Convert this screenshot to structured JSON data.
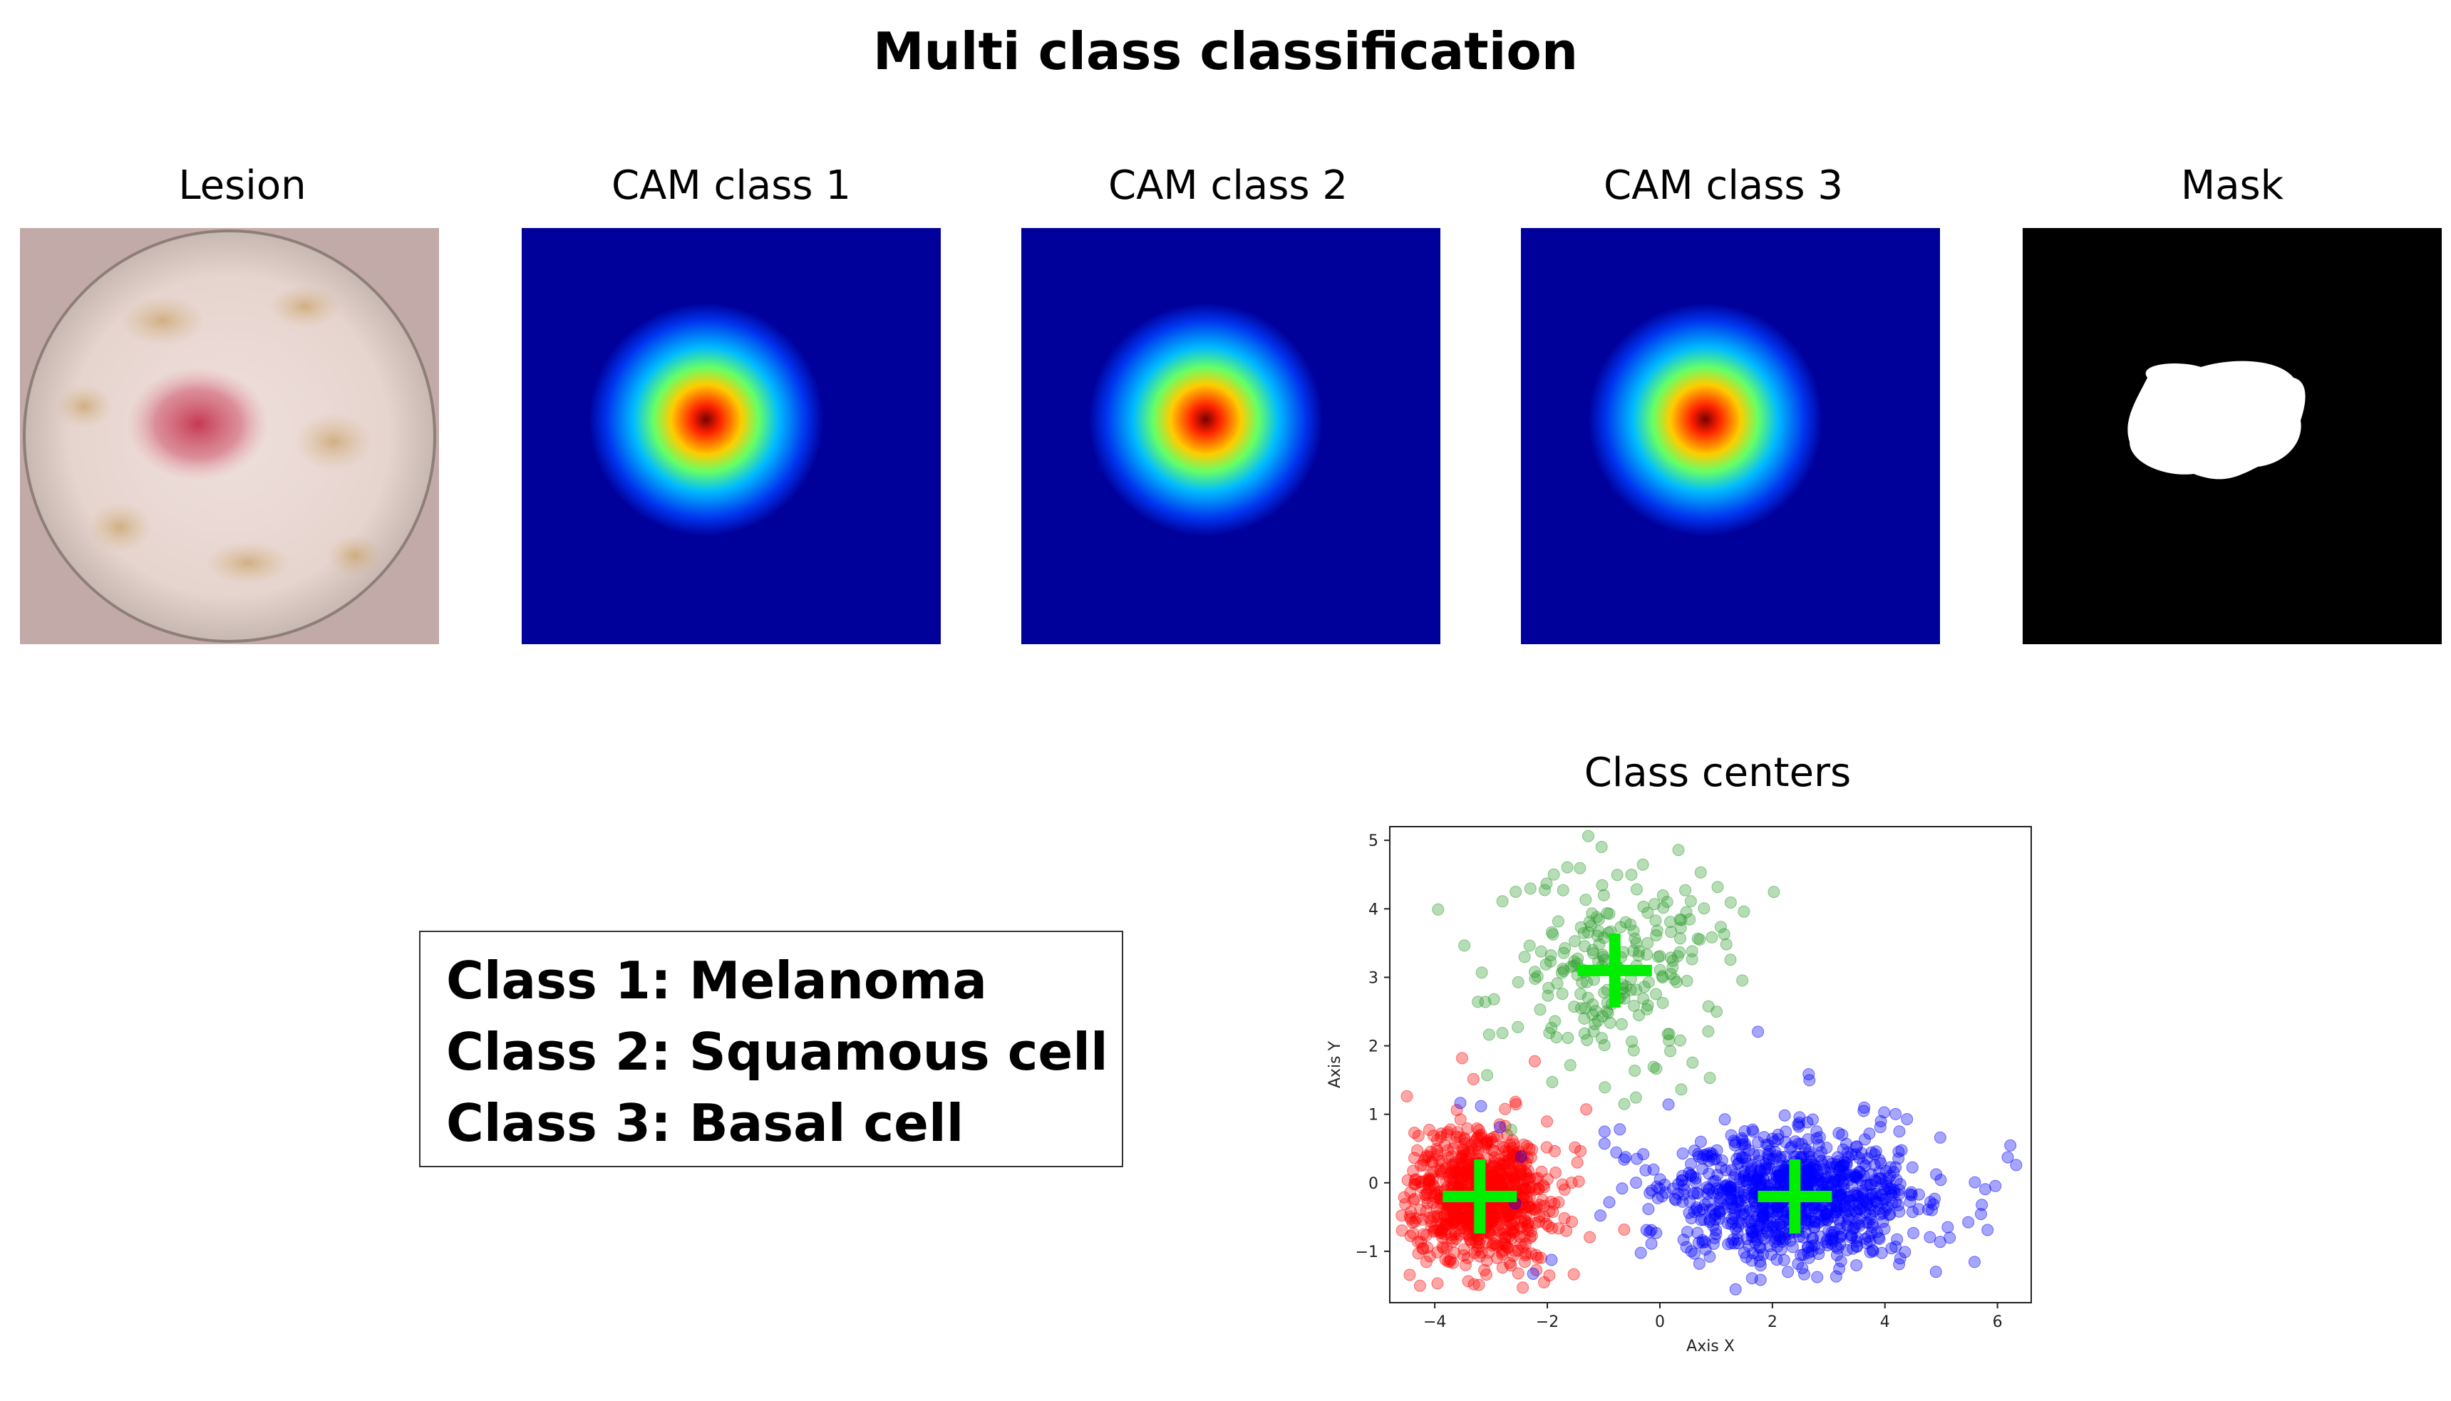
{
  "title": "Multi class classification",
  "panels": [
    {
      "label": "Lesion"
    },
    {
      "label": "CAM class 1"
    },
    {
      "label": "CAM class 2"
    },
    {
      "label": "CAM class 3"
    },
    {
      "label": "Mask"
    }
  ],
  "legend": {
    "lines": [
      "Class 1: Melanoma",
      "Class 2: Squamous cell",
      "Class 3: Basal cell"
    ]
  },
  "chart_data": {
    "type": "scatter",
    "title": "Class centers",
    "xlabel": "Axis X",
    "ylabel": "Axis Y",
    "xlim": [
      -4.8,
      6.6
    ],
    "ylim": [
      -1.75,
      5.2
    ],
    "xticks": [
      -4,
      -2,
      0,
      2,
      4,
      6
    ],
    "yticks": [
      -1,
      0,
      1,
      2,
      3,
      4,
      5
    ],
    "series": [
      {
        "color": "#ff0000",
        "center": [
          -3.2,
          -0.2
        ],
        "spread": [
          0.55,
          0.45
        ],
        "count": 900,
        "tail": [
          1.2,
          0.9
        ]
      },
      {
        "color": "#2e9e2e",
        "center": [
          -0.8,
          3.1
        ],
        "spread": [
          1.0,
          0.75
        ],
        "count": 230,
        "tail": [
          0.6,
          0.6
        ]
      },
      {
        "color": "#0000ff",
        "center": [
          2.4,
          -0.2
        ],
        "spread": [
          1.0,
          0.45
        ],
        "count": 1000,
        "tail": [
          1.3,
          0.9
        ]
      }
    ],
    "centers": [
      [
        -3.2,
        -0.2
      ],
      [
        -0.8,
        3.1
      ],
      [
        2.4,
        -0.2
      ]
    ],
    "center_color": "#00ee00"
  }
}
